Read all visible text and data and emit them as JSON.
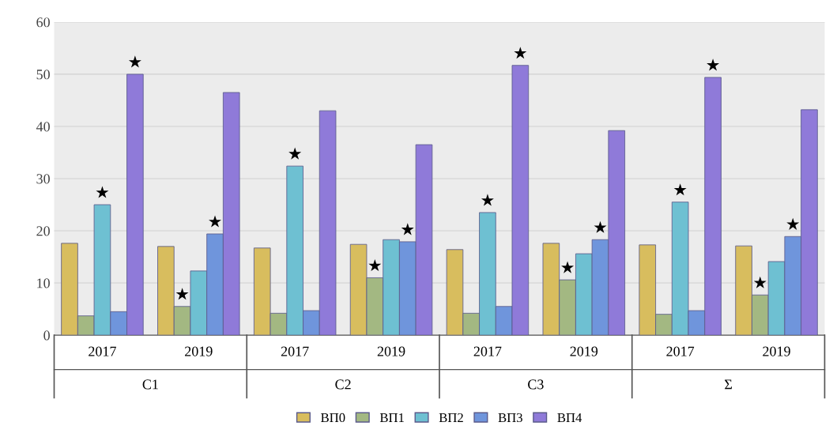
{
  "chart_data": {
    "type": "bar",
    "categories": [
      "2017",
      "2019",
      "2017",
      "2019",
      "2017",
      "2019",
      "2017",
      "2019"
    ],
    "annotations": [
      "С1",
      "С2",
      "С3",
      "Σ"
    ],
    "series": [
      {
        "name": "ВП0",
        "color": "#d8bd5e",
        "values": [
          17.6,
          17,
          16.7,
          17.4,
          16.4,
          17.6,
          17.3,
          17.1
        ]
      },
      {
        "name": "ВП1",
        "color": "#a3b882",
        "values": [
          3.7,
          5.5,
          4.2,
          11,
          4.2,
          10.6,
          4,
          7.7
        ],
        "value_labels": [
          null,
          "★",
          null,
          "★",
          null,
          "★",
          null,
          "★"
        ]
      },
      {
        "name": "ВП2",
        "color": "#6ec0d2",
        "values": [
          25,
          12.3,
          32.4,
          18.3,
          23.5,
          15.6,
          25.5,
          14.1
        ],
        "value_labels": [
          "★",
          null,
          "★",
          null,
          "★",
          null,
          "★",
          null
        ]
      },
      {
        "name": "ВП3",
        "color": "#6f95dc",
        "values": [
          4.5,
          19.4,
          4.7,
          17.9,
          5.5,
          18.3,
          4.7,
          18.9
        ],
        "value_labels": [
          null,
          "★",
          null,
          "★",
          null,
          "★",
          null,
          "★"
        ]
      },
      {
        "name": "ВП4",
        "color": "#8f7ad9",
        "values": [
          50,
          46.5,
          43,
          36.5,
          51.7,
          39.2,
          49.4,
          43.2
        ],
        "value_labels": [
          "★",
          null,
          null,
          null,
          "★",
          null,
          "★",
          null
        ]
      }
    ],
    "ylim": [
      0,
      60
    ],
    "yticks": [
      0,
      10,
      20,
      30,
      40,
      50,
      60
    ],
    "grid": "y",
    "legend": "bottom"
  }
}
